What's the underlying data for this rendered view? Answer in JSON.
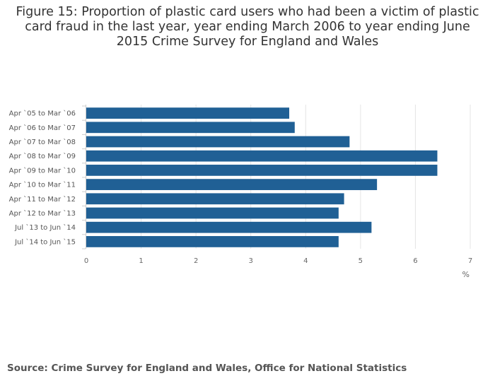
{
  "chart_data": {
    "type": "bar",
    "orientation": "horizontal",
    "title": "Figure 15: Proportion of plastic card users who had been a victim of plastic card fraud in the last year, year ending March 2006 to year ending June 2015 Crime Survey for England and Wales",
    "categories": [
      "Apr `05 to Mar `06",
      "Apr `06 to Mar `07",
      "Apr `07 to Mar `08",
      "Apr `08 to Mar `09",
      "Apr `09 to Mar `10",
      "Apr `10 to Mar `11",
      "Apr `11 to Mar `12",
      "Apr `12 to Mar `13",
      "Jul `13 to Jun `14",
      "Jul `14 to Jun `15"
    ],
    "values": [
      3.7,
      3.8,
      4.8,
      6.4,
      6.4,
      5.3,
      4.7,
      4.6,
      5.2,
      4.6
    ],
    "xlabel": "%",
    "ylabel": "",
    "xlim": [
      0,
      7
    ],
    "xticks": [
      "0",
      "1",
      "2",
      "3",
      "4",
      "5",
      "6",
      "7"
    ],
    "grid": "vertical",
    "legend": "none",
    "bar_color": "#206095"
  },
  "source": "Source: Crime Survey for England and Wales, Office for National Statistics"
}
